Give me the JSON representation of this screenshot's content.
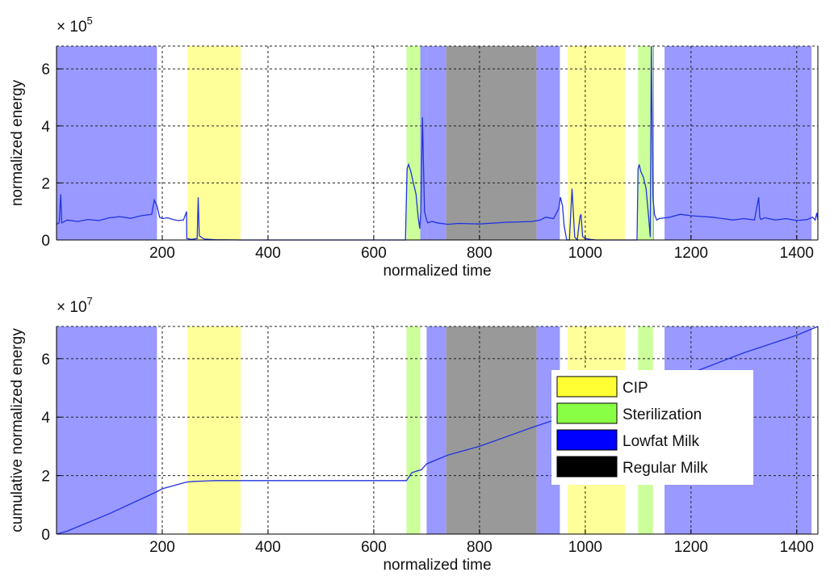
{
  "colors": {
    "CIP": "#ffff99",
    "Sterilization": "#ccff99",
    "Lowfat Milk": "#9999ff",
    "Regular Milk": "#999999",
    "line": "#2233dd",
    "legend_CIP": "#ffff33",
    "legend_Sterilization": "#88ff44",
    "legend_Lowfat Milk": "#0000ff",
    "legend_Regular Milk": "#000000"
  },
  "chart_data": [
    {
      "type": "line",
      "xlabel": "normalized time",
      "ylabel": "normalized energy",
      "exponent_label": "× 10",
      "exponent_power": "5",
      "xlim": [
        0,
        1440
      ],
      "ylim": [
        0,
        680000
      ],
      "xticks": [
        200,
        400,
        600,
        800,
        1000,
        1200,
        1400
      ],
      "xtick_labels": [
        "200",
        "400",
        "600",
        "800",
        "1000",
        "1200",
        "1400"
      ],
      "yticks": [
        0,
        200000,
        400000,
        600000
      ],
      "ytick_labels": [
        "0",
        "2",
        "4",
        "6"
      ],
      "grid": true,
      "regions": [
        {
          "label": "Lowfat Milk",
          "start": 0,
          "end": 190
        },
        {
          "label": "CIP",
          "start": 248,
          "end": 348
        },
        {
          "label": "Sterilization",
          "start": 662,
          "end": 688
        },
        {
          "label": "Lowfat Milk",
          "start": 688,
          "end": 700
        },
        {
          "label": "Lowfat Milk",
          "start": 700,
          "end": 737
        },
        {
          "label": "Regular Milk",
          "start": 737,
          "end": 908
        },
        {
          "label": "Lowfat Milk",
          "start": 908,
          "end": 952
        },
        {
          "label": "CIP",
          "start": 967,
          "end": 1075
        },
        {
          "label": "Sterilization",
          "start": 1100,
          "end": 1128
        },
        {
          "label": "Lowfat Milk",
          "start": 1128,
          "end": 1130
        },
        {
          "label": "Lowfat Milk",
          "start": 1150,
          "end": 1428
        }
      ],
      "series": [
        {
          "x": [
            0,
            5,
            8,
            10,
            20,
            40,
            60,
            80,
            100,
            120,
            140,
            160,
            180,
            185,
            190,
            195,
            200,
            210,
            220,
            230,
            240,
            246,
            246.5,
            255,
            266,
            268,
            270,
            275,
            280,
            300,
            350,
            400,
            500,
            600,
            650,
            660,
            663,
            666,
            670,
            675,
            680,
            684,
            687,
            689,
            692,
            696,
            700,
            702,
            710,
            720,
            740,
            760,
            800,
            850,
            900,
            915,
            925,
            940,
            950,
            953,
            957,
            960,
            965,
            970,
            975,
            980,
            985,
            988,
            990,
            992,
            995,
            1000,
            1010,
            1020,
            1030,
            1040,
            1050,
            1060,
            1080,
            1098,
            1100,
            1102,
            1105,
            1110,
            1115,
            1120,
            1123,
            1125,
            1126,
            1128,
            1131,
            1135,
            1140,
            1160,
            1180,
            1200,
            1240,
            1280,
            1300,
            1320,
            1328,
            1330,
            1332,
            1340,
            1360,
            1380,
            1400,
            1420,
            1430,
            1435,
            1438,
            1440
          ],
          "y": [
            55000,
            60000,
            160000,
            60000,
            70000,
            65000,
            72000,
            68000,
            78000,
            82000,
            76000,
            85000,
            90000,
            140000,
            120000,
            80000,
            75000,
            78000,
            72000,
            68000,
            70000,
            100000,
            5000,
            2000,
            5000,
            150000,
            15000,
            8000,
            3000,
            1000,
            0,
            0,
            0,
            0,
            0,
            0,
            250000,
            265000,
            240000,
            200000,
            160000,
            80000,
            40000,
            100000,
            430000,
            100000,
            70000,
            60000,
            65000,
            60000,
            55000,
            58000,
            56000,
            62000,
            65000,
            70000,
            80000,
            75000,
            110000,
            150000,
            120000,
            50000,
            0,
            0,
            180000,
            10000,
            0,
            50000,
            80000,
            90000,
            12000,
            5000,
            2000,
            0,
            0,
            0,
            0,
            0,
            0,
            0,
            250000,
            265000,
            240000,
            220000,
            180000,
            80000,
            10000,
            680000,
            500000,
            150000,
            90000,
            70000,
            75000,
            80000,
            90000,
            85000,
            80000,
            70000,
            75000,
            70000,
            150000,
            80000,
            72000,
            78000,
            70000,
            75000,
            68000,
            72000,
            80000,
            70000,
            95000,
            70000
          ]
        }
      ]
    },
    {
      "type": "line",
      "xlabel": "normalized time",
      "ylabel": "cumulative normalized energy",
      "exponent_label": "× 10",
      "exponent_power": "7",
      "xlim": [
        0,
        1440
      ],
      "ylim": [
        0,
        71000000
      ],
      "xticks": [
        200,
        400,
        600,
        800,
        1000,
        1200,
        1400
      ],
      "xtick_labels": [
        "200",
        "400",
        "600",
        "800",
        "1000",
        "1200",
        "1400"
      ],
      "yticks": [
        0,
        20000000,
        40000000,
        60000000
      ],
      "ytick_labels": [
        "0",
        "2",
        "4",
        "6"
      ],
      "grid": true,
      "regions": [
        {
          "label": "Lowfat Milk",
          "start": 0,
          "end": 190
        },
        {
          "label": "CIP",
          "start": 248,
          "end": 348
        },
        {
          "label": "Sterilization",
          "start": 662,
          "end": 688
        },
        {
          "label": "Lowfat Milk",
          "start": 700,
          "end": 737
        },
        {
          "label": "Regular Milk",
          "start": 737,
          "end": 908
        },
        {
          "label": "Lowfat Milk",
          "start": 908,
          "end": 952
        },
        {
          "label": "CIP",
          "start": 967,
          "end": 1075
        },
        {
          "label": "Sterilization",
          "start": 1100,
          "end": 1128
        },
        {
          "label": "Lowfat Milk",
          "start": 1150,
          "end": 1428
        }
      ],
      "legend": {
        "placement": "right",
        "entries": [
          "CIP",
          "Sterilization",
          "Lowfat Milk",
          "Regular Milk"
        ]
      },
      "series": [
        {
          "x": [
            0,
            20,
            100,
            190,
            200,
            246,
            260,
            300,
            400,
            500,
            600,
            662,
            672,
            680,
            690,
            700,
            740,
            800,
            900,
            950,
            970,
            1000,
            1075,
            1100,
            1130,
            1160,
            1200,
            1300,
            1400,
            1440
          ],
          "y": [
            0,
            1000000,
            7000000,
            14500000,
            15500000,
            17800000,
            18000000,
            18300000,
            18300000,
            18300000,
            18300000,
            18300000,
            21000000,
            21500000,
            22000000,
            24000000,
            27000000,
            30000000,
            36500000,
            39500000,
            40500000,
            41500000,
            44500000,
            46000000,
            49000000,
            52000000,
            55000000,
            62000000,
            68000000,
            71000000
          ]
        }
      ]
    }
  ]
}
